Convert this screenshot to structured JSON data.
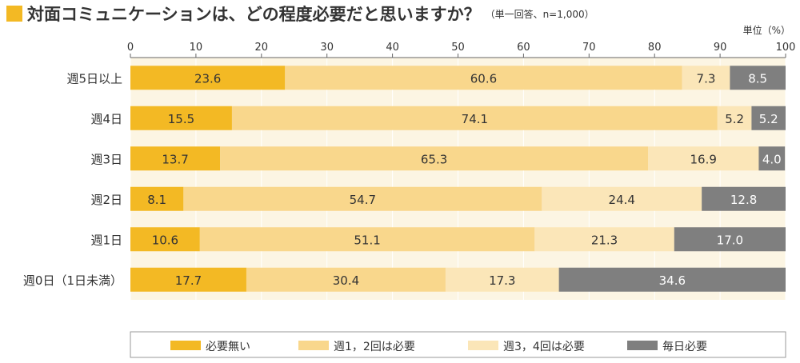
{
  "title": "対面コミュニケーションは、どの程度必要だと思いますか？",
  "subtitle": "（単一回答、n=1,000）",
  "colors": {
    "accent": "#f3b924",
    "plot_bg": "#fcf5e3",
    "series": [
      "#f3b924",
      "#f9d78c",
      "#fbe6b8",
      "#7f7f7f"
    ],
    "label_dark": "#333333",
    "label_light": "#ffffff"
  },
  "chart_data": {
    "type": "bar",
    "orientation": "horizontal",
    "stacked": true,
    "unit_label": "単位（%）",
    "xlim": [
      0,
      100
    ],
    "x_ticks": [
      "0",
      "10",
      "20",
      "30",
      "40",
      "50",
      "60",
      "70",
      "80",
      "90",
      "100"
    ],
    "categories": [
      "週5日以上",
      "週4日",
      "週3日",
      "週2日",
      "週1日",
      "週0日（1日未満）"
    ],
    "series": [
      {
        "name": "必要無い",
        "values": [
          23.6,
          15.5,
          13.7,
          8.1,
          10.6,
          17.7
        ]
      },
      {
        "name": "週1，2回は必要",
        "values": [
          60.6,
          74.1,
          65.3,
          54.7,
          51.1,
          30.4
        ]
      },
      {
        "name": "週3，4回は必要",
        "values": [
          7.3,
          5.2,
          16.9,
          24.4,
          21.3,
          17.3
        ]
      },
      {
        "name": "毎日必要",
        "values": [
          8.5,
          5.2,
          4.0,
          12.8,
          17.0,
          34.6
        ]
      }
    ],
    "grid": true,
    "legend": "bottom"
  }
}
